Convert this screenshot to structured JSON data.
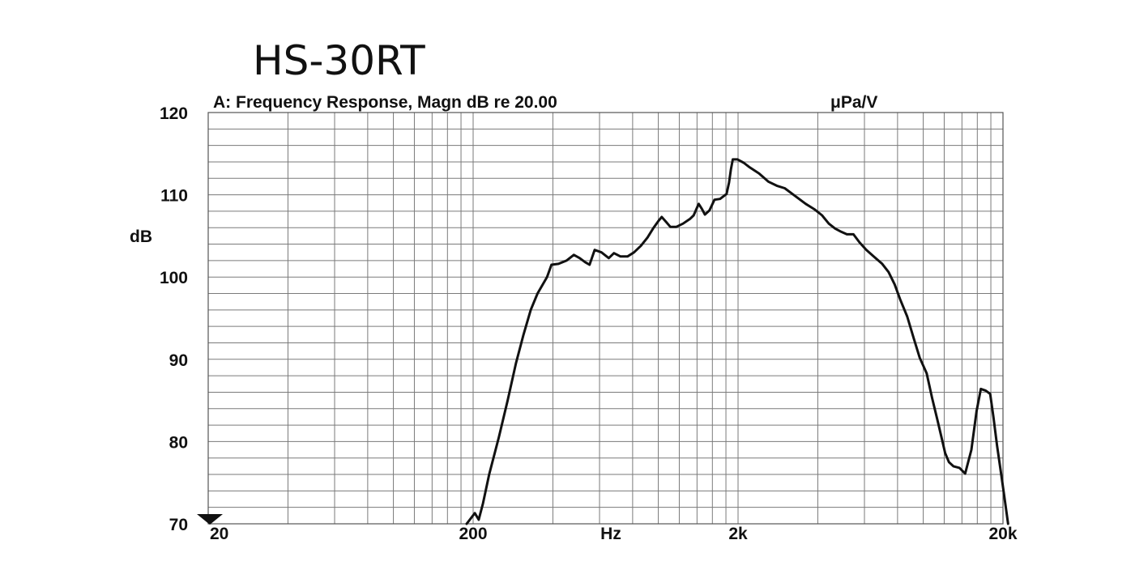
{
  "page_title": "HS-30RT",
  "chart_data": {
    "type": "line",
    "title": "A: Frequency Response, Magn dB re 20.00",
    "units": "μPa/V",
    "xlabel": "Hz",
    "ylabel": "dB",
    "xscale": "log",
    "xlim": [
      20,
      20000
    ],
    "ylim": [
      70,
      120
    ],
    "x_ticks": [
      {
        "value": 20,
        "label": "20"
      },
      {
        "value": 200,
        "label": "200"
      },
      {
        "value": 2000,
        "label": "2k"
      },
      {
        "value": 20000,
        "label": "20k"
      }
    ],
    "y_ticks": [
      {
        "value": 120,
        "label": "120"
      },
      {
        "value": 110,
        "label": "110"
      },
      {
        "value": 100,
        "label": "100"
      },
      {
        "value": 90,
        "label": "90"
      },
      {
        "value": 80,
        "label": "80"
      },
      {
        "value": 70,
        "label": "70"
      }
    ],
    "grid": true,
    "series": [
      {
        "color": "#111111",
        "points": [
          [
            189,
            70
          ],
          [
            203,
            71.3
          ],
          [
            210,
            70.5
          ],
          [
            218,
            72.5
          ],
          [
            230,
            76
          ],
          [
            250,
            80.5
          ],
          [
            270,
            85
          ],
          [
            290,
            89.5
          ],
          [
            310,
            93
          ],
          [
            330,
            96
          ],
          [
            350,
            98
          ],
          [
            380,
            100
          ],
          [
            395,
            101.5
          ],
          [
            420,
            101.6
          ],
          [
            450,
            102
          ],
          [
            480,
            102.7
          ],
          [
            505,
            102.3
          ],
          [
            530,
            101.8
          ],
          [
            550,
            101.5
          ],
          [
            575,
            103.3
          ],
          [
            610,
            103
          ],
          [
            650,
            102.3
          ],
          [
            680,
            102.9
          ],
          [
            720,
            102.5
          ],
          [
            765,
            102.5
          ],
          [
            810,
            103
          ],
          [
            860,
            103.8
          ],
          [
            910,
            104.8
          ],
          [
            960,
            106
          ],
          [
            1000,
            106.8
          ],
          [
            1030,
            107.3
          ],
          [
            1070,
            106.7
          ],
          [
            1110,
            106.1
          ],
          [
            1170,
            106.1
          ],
          [
            1240,
            106.5
          ],
          [
            1320,
            107.1
          ],
          [
            1360,
            107.5
          ],
          [
            1420,
            108.9
          ],
          [
            1460,
            108.3
          ],
          [
            1500,
            107.6
          ],
          [
            1560,
            108.1
          ],
          [
            1630,
            109.4
          ],
          [
            1710,
            109.5
          ],
          [
            1810,
            110.1
          ],
          [
            1850,
            111.5
          ],
          [
            1880,
            113.1
          ],
          [
            1910,
            114.3
          ],
          [
            1990,
            114.3
          ],
          [
            2100,
            113.9
          ],
          [
            2200,
            113.4
          ],
          [
            2400,
            112.6
          ],
          [
            2600,
            111.6
          ],
          [
            2800,
            111.1
          ],
          [
            3000,
            110.8
          ],
          [
            3300,
            109.8
          ],
          [
            3600,
            108.9
          ],
          [
            3900,
            108.2
          ],
          [
            4150,
            107.5
          ],
          [
            4400,
            106.5
          ],
          [
            4650,
            105.9
          ],
          [
            4900,
            105.5
          ],
          [
            5150,
            105.2
          ],
          [
            5450,
            105.2
          ],
          [
            5750,
            104.2
          ],
          [
            6100,
            103.3
          ],
          [
            6500,
            102.5
          ],
          [
            7000,
            101.6
          ],
          [
            7400,
            100.6
          ],
          [
            7800,
            99.1
          ],
          [
            8200,
            97.2
          ],
          [
            8700,
            95.2
          ],
          [
            9200,
            92.6
          ],
          [
            9700,
            90.2
          ],
          [
            10300,
            88.3
          ],
          [
            10800,
            85.3
          ],
          [
            11300,
            82.7
          ],
          [
            11800,
            80.1
          ],
          [
            12100,
            78.6
          ],
          [
            12500,
            77.5
          ],
          [
            13000,
            77
          ],
          [
            13700,
            76.8
          ],
          [
            14400,
            76.1
          ],
          [
            15200,
            79
          ],
          [
            15900,
            83.7
          ],
          [
            16500,
            86.4
          ],
          [
            17200,
            86.2
          ],
          [
            17900,
            85.8
          ],
          [
            18400,
            83
          ],
          [
            19000,
            79.5
          ],
          [
            19600,
            76.5
          ],
          [
            20200,
            73.5
          ],
          [
            20900,
            70
          ]
        ]
      }
    ]
  }
}
